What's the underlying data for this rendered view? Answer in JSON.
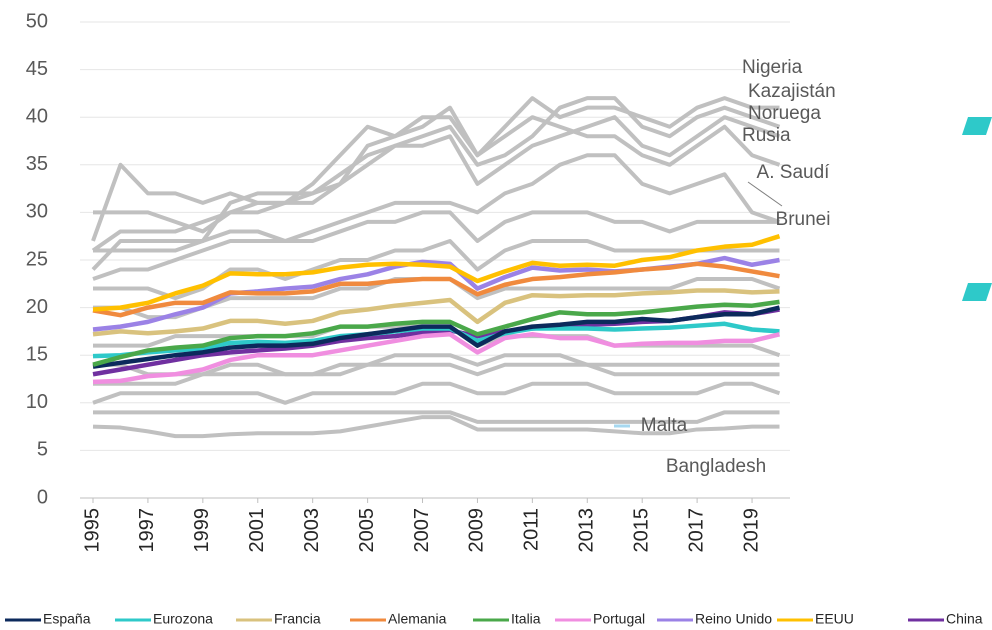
{
  "chart_data": {
    "type": "line",
    "x": [
      1995,
      1996,
      1997,
      1998,
      1999,
      2000,
      2001,
      2002,
      2003,
      2004,
      2005,
      2006,
      2007,
      2008,
      2009,
      2010,
      2011,
      2012,
      2013,
      2014,
      2015,
      2016,
      2017,
      2018,
      2019,
      2020
    ],
    "xlim": [
      1995,
      2020
    ],
    "xticks": [
      1995,
      1997,
      1999,
      2001,
      2003,
      2005,
      2007,
      2009,
      2011,
      2013,
      2015,
      2017,
      2019
    ],
    "ylim": [
      0,
      50
    ],
    "yticks": [
      0,
      5,
      10,
      15,
      20,
      25,
      30,
      35,
      40,
      45,
      50
    ],
    "grid": true,
    "background_series": [
      {
        "color": "#c0c0c0",
        "values": [
          26,
          28,
          28,
          28,
          29,
          30,
          30,
          31,
          33,
          36,
          39,
          38,
          40,
          40,
          36,
          39,
          42,
          40,
          41,
          41,
          40,
          39,
          41,
          42,
          41,
          41
        ]
      },
      {
        "color": "#c0c0c0",
        "values": [
          24,
          27,
          27,
          27,
          27,
          31,
          32,
          32,
          32,
          34,
          36,
          37,
          38,
          39,
          35,
          36,
          38,
          41,
          42,
          42,
          39,
          38,
          40,
          41,
          40,
          39
        ]
      },
      {
        "color": "#c0c0c0",
        "values": [
          30,
          30,
          30,
          29,
          28,
          30,
          31,
          31,
          31,
          33,
          35,
          37,
          37,
          38,
          33,
          35,
          37,
          38,
          39,
          40,
          37,
          36,
          38,
          40,
          39,
          38
        ]
      },
      {
        "color": "#c0c0c0",
        "values": [
          27,
          35,
          32,
          32,
          31,
          32,
          31,
          31,
          32,
          33,
          37,
          38,
          39,
          41,
          36,
          38,
          40,
          39,
          38,
          38,
          36,
          35,
          37,
          39,
          36,
          35
        ]
      },
      {
        "color": "#c0c0c0",
        "values": [
          23,
          24,
          24,
          25,
          26,
          27,
          27,
          27,
          28,
          29,
          30,
          31,
          31,
          31,
          30,
          32,
          33,
          35,
          36,
          36,
          33,
          32,
          33,
          34,
          30,
          29
        ]
      },
      {
        "color": "#c0c0c0",
        "values": [
          26,
          26,
          26,
          26,
          27,
          28,
          28,
          27,
          27,
          28,
          29,
          29,
          30,
          30,
          27,
          29,
          30,
          30,
          30,
          29,
          29,
          28,
          29,
          29,
          29,
          29
        ]
      },
      {
        "color": "#c0c0c0",
        "values": [
          22,
          22,
          22,
          21,
          22,
          24,
          24,
          23,
          24,
          25,
          25,
          26,
          26,
          27,
          24,
          26,
          27,
          27,
          27,
          26,
          26,
          26,
          26,
          26,
          26,
          26
        ]
      },
      {
        "color": "#c0c0c0",
        "values": [
          20,
          20,
          19,
          19,
          20,
          21,
          21,
          21,
          21,
          22,
          22,
          23,
          23,
          23,
          21,
          22,
          22,
          22,
          22,
          22,
          22,
          22,
          23,
          23,
          23,
          22
        ]
      },
      {
        "color": "#c0c0c0",
        "values": [
          16,
          16,
          16,
          17,
          17,
          17,
          17,
          17,
          17,
          18,
          18,
          18,
          18,
          18,
          16,
          17,
          17,
          17,
          17,
          16,
          16,
          16,
          16,
          16,
          16,
          15
        ]
      },
      {
        "color": "#c0c0c0",
        "values": [
          14,
          14,
          13,
          13,
          13,
          14,
          14,
          13,
          13,
          14,
          14,
          15,
          15,
          15,
          14,
          15,
          15,
          15,
          14,
          14,
          14,
          14,
          14,
          14,
          14,
          14
        ]
      },
      {
        "color": "#c0c0c0",
        "values": [
          12,
          12,
          12,
          12,
          13,
          13,
          13,
          13,
          13,
          13,
          14,
          14,
          14,
          14,
          13,
          14,
          14,
          14,
          14,
          13,
          13,
          13,
          13,
          13,
          13,
          13
        ]
      },
      {
        "color": "#c0c0c0",
        "values": [
          10,
          11,
          11,
          11,
          11,
          11,
          11,
          10,
          11,
          11,
          11,
          11,
          12,
          12,
          11,
          11,
          12,
          12,
          12,
          11,
          11,
          11,
          11,
          12,
          12,
          11
        ]
      },
      {
        "color": "#c0c0c0",
        "values": [
          9,
          9,
          9,
          9,
          9,
          9,
          9,
          9,
          9,
          9,
          9,
          9,
          9,
          9,
          8,
          8,
          8,
          8,
          8,
          8,
          8,
          8,
          8,
          9,
          9,
          9
        ]
      },
      {
        "color": "#c0c0c0",
        "values": [
          7.5,
          7.4,
          7,
          6.5,
          6.5,
          6.7,
          6.8,
          6.8,
          6.8,
          7,
          7.5,
          8,
          8.5,
          8.5,
          7.2,
          7.2,
          7.2,
          7.2,
          7.2,
          7,
          6.8,
          6.8,
          7.2,
          7.3,
          7.5,
          7.5
        ]
      }
    ],
    "series": [
      {
        "name": "España",
        "color": "#0c2a5c",
        "values": [
          13.8,
          14.2,
          14.6,
          15,
          15.3,
          15.8,
          16,
          16,
          16.2,
          16.8,
          17.2,
          17.6,
          18,
          18,
          16,
          17.5,
          18,
          18.2,
          18.5,
          18.5,
          18.8,
          18.6,
          19,
          19.3,
          19.3,
          20
        ]
      },
      {
        "name": "Eurozona",
        "color": "#2ec9c9",
        "values": [
          14.9,
          15,
          15.3,
          15.5,
          15.7,
          16.3,
          16.4,
          16.3,
          16.5,
          17,
          17.2,
          17.5,
          17.8,
          17.8,
          16.5,
          17.3,
          17.8,
          17.8,
          17.8,
          17.7,
          17.8,
          17.9,
          18.1,
          18.3,
          17.7,
          17.5
        ]
      },
      {
        "name": "Francia",
        "color": "#d9c27e",
        "values": [
          17.2,
          17.5,
          17.3,
          17.5,
          17.8,
          18.6,
          18.6,
          18.3,
          18.6,
          19.5,
          19.8,
          20.2,
          20.5,
          20.8,
          18.5,
          20.5,
          21.3,
          21.2,
          21.3,
          21.3,
          21.5,
          21.6,
          21.8,
          21.8,
          21.6,
          21.7
        ]
      },
      {
        "name": "Alemania",
        "color": "#f08a3e",
        "values": [
          19.7,
          19.2,
          20,
          20.5,
          20.5,
          21.6,
          21.5,
          21.5,
          21.7,
          22.5,
          22.5,
          22.8,
          23,
          23,
          21.4,
          22.4,
          23,
          23.2,
          23.5,
          23.7,
          24,
          24.2,
          24.6,
          24.3,
          23.8,
          23.3
        ]
      },
      {
        "name": "Italia",
        "color": "#4aa84a",
        "values": [
          14,
          14.8,
          15.5,
          15.8,
          16,
          16.8,
          17,
          17,
          17.3,
          18,
          18,
          18.3,
          18.5,
          18.5,
          17.2,
          18,
          18.8,
          19.5,
          19.3,
          19.3,
          19.5,
          19.8,
          20.1,
          20.3,
          20.2,
          20.6
        ]
      },
      {
        "name": "Portugal",
        "color": "#f08ee0",
        "values": [
          12.2,
          12.3,
          12.8,
          13,
          13.5,
          14.5,
          15,
          15,
          15,
          15.5,
          16,
          16.5,
          17,
          17.2,
          15.3,
          16.8,
          17.2,
          16.8,
          16.8,
          16,
          16.2,
          16.3,
          16.3,
          16.5,
          16.5,
          17.2
        ]
      },
      {
        "name": "Reino Unido",
        "color": "#9b82e6",
        "values": [
          17.7,
          18,
          18.5,
          19.3,
          20,
          21.5,
          21.7,
          22,
          22.2,
          23,
          23.5,
          24.3,
          24.8,
          24.6,
          22,
          23.2,
          24.2,
          23.9,
          24,
          23.8,
          24,
          24.3,
          24.6,
          25.2,
          24.5,
          25
        ]
      },
      {
        "name": "EEUU",
        "color": "#ffc000",
        "values": [
          19.8,
          20,
          20.5,
          21.5,
          22.3,
          23.6,
          23.5,
          23.5,
          23.7,
          24.2,
          24.5,
          24.6,
          24.5,
          24.3,
          22.8,
          23.8,
          24.7,
          24.4,
          24.5,
          24.4,
          25,
          25.3,
          26,
          26.4,
          26.6,
          27.5
        ]
      },
      {
        "name": "China",
        "color": "#7030a0",
        "values": [
          13,
          13.5,
          14,
          14.5,
          15,
          15.3,
          15.5,
          15.7,
          16,
          16.5,
          16.8,
          17,
          17.4,
          17.6,
          17,
          17.5,
          17.8,
          18,
          18.2,
          18.3,
          18.5,
          18.6,
          19,
          19.5,
          19.3,
          19.8
        ]
      }
    ],
    "annotations": [
      "Nigeria",
      "Kazajistán",
      "Noruega",
      "Rusia",
      "A. Saudí",
      "Brunei",
      "Malta",
      "Bangladesh"
    ]
  }
}
